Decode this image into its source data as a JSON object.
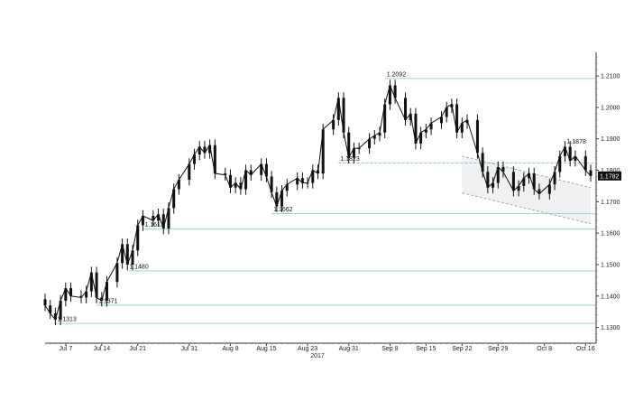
{
  "chart_data": {
    "type": "candlestick",
    "title": "",
    "xlabel": "2017",
    "ylabel": "",
    "ylim": [
      1.125,
      1.2175
    ],
    "grid": false,
    "legend": "none",
    "colors": {
      "candle": "#111111",
      "level_line": "#8fd3c9",
      "channel": "#9a9a9a",
      "channel_fill": "#eef0f2",
      "axis": "#333333",
      "badge_bg": "#111111",
      "badge_text": "#ffffff"
    },
    "x_tick_labels": [
      "Jul 7",
      "Jul 14",
      "Jul 21",
      "Jul 31",
      "Aug 8",
      "Aug 15",
      "Aug 23",
      "Aug 31",
      "Sep 8",
      "Sep 15",
      "Sep 22",
      "Sep 29",
      "Oct 8",
      "Oct 16"
    ],
    "x_tick_dates": [
      "2017-07-07",
      "2017-07-14",
      "2017-07-21",
      "2017-07-31",
      "2017-08-08",
      "2017-08-15",
      "2017-08-23",
      "2017-08-31",
      "2017-09-08",
      "2017-09-15",
      "2017-09-22",
      "2017-09-29",
      "2017-10-08",
      "2017-10-16"
    ],
    "x_range": [
      "2017-07-03",
      "2017-10-17"
    ],
    "y_ticks": [
      "1.1300",
      "1.1400",
      "1.1500",
      "1.1600",
      "1.1700",
      "1.1800",
      "1.1900",
      "1.2000",
      "1.2100"
    ],
    "last_price": "1.1782",
    "levels": [
      {
        "label": "1.2092",
        "value": 1.2092,
        "start": "2017-09-07",
        "style": "solid"
      },
      {
        "label": "1.1878",
        "value": 1.1878,
        "start": "2017-10-12",
        "style": "none"
      },
      {
        "label": "1.1823",
        "value": 1.1823,
        "start": "2017-08-29",
        "style": "dashed"
      },
      {
        "label": "1.1662",
        "value": 1.1662,
        "start": "2017-08-16",
        "style": "solid"
      },
      {
        "label": "1.1613",
        "value": 1.1613,
        "start": "2017-07-22",
        "style": "solid"
      },
      {
        "label": "1.1480",
        "value": 1.148,
        "start": "2017-07-19",
        "style": "solid"
      },
      {
        "label": "1.1371",
        "value": 1.1371,
        "start": "2017-07-13",
        "style": "solid"
      },
      {
        "label": "1.1313",
        "value": 1.1313,
        "start": "2017-07-05",
        "style": "solid"
      }
    ],
    "channel": {
      "upper": [
        [
          "2017-09-22",
          1.1845
        ],
        [
          "2017-10-17",
          1.1745
        ]
      ],
      "lower": [
        [
          "2017-09-22",
          1.1728
        ],
        [
          "2017-10-17",
          1.163
        ]
      ]
    },
    "series": [
      {
        "values": [
          [
            "2017-07-03",
            1.137
          ],
          [
            "2017-07-04",
            1.1345
          ],
          [
            "2017-07-05",
            1.1325
          ],
          [
            "2017-07-06",
            1.1385
          ],
          [
            "2017-07-07",
            1.1425
          ],
          [
            "2017-07-08",
            1.14
          ],
          [
            "2017-07-10",
            1.1395
          ],
          [
            "2017-07-11",
            1.1415
          ],
          [
            "2017-07-12",
            1.1475
          ],
          [
            "2017-07-13",
            1.1395
          ],
          [
            "2017-07-14",
            1.1385
          ],
          [
            "2017-07-15",
            1.1445
          ],
          [
            "2017-07-17",
            1.1505
          ],
          [
            "2017-07-18",
            1.1565
          ],
          [
            "2017-07-19",
            1.15
          ],
          [
            "2017-07-20",
            1.1545
          ],
          [
            "2017-07-21",
            1.1625
          ],
          [
            "2017-07-22",
            1.1655
          ],
          [
            "2017-07-24",
            1.164
          ],
          [
            "2017-07-25",
            1.166
          ],
          [
            "2017-07-26",
            1.1615
          ],
          [
            "2017-07-27",
            1.168
          ],
          [
            "2017-07-28",
            1.174
          ],
          [
            "2017-07-29",
            1.177
          ],
          [
            "2017-07-31",
            1.182
          ],
          [
            "2017-08-01",
            1.185
          ],
          [
            "2017-08-02",
            1.1875
          ],
          [
            "2017-08-03",
            1.1855
          ],
          [
            "2017-08-04",
            1.188
          ],
          [
            "2017-08-05",
            1.179
          ],
          [
            "2017-08-07",
            1.1785
          ],
          [
            "2017-08-08",
            1.1745
          ],
          [
            "2017-08-09",
            1.176
          ],
          [
            "2017-08-10",
            1.174
          ],
          [
            "2017-08-11",
            1.18
          ],
          [
            "2017-08-12",
            1.1785
          ],
          [
            "2017-08-14",
            1.182
          ],
          [
            "2017-08-15",
            1.178
          ],
          [
            "2017-08-16",
            1.173
          ],
          [
            "2017-08-17",
            1.1685
          ],
          [
            "2017-08-18",
            1.1735
          ],
          [
            "2017-08-19",
            1.1755
          ],
          [
            "2017-08-21",
            1.1775
          ],
          [
            "2017-08-22",
            1.176
          ],
          [
            "2017-08-23",
            1.176
          ],
          [
            "2017-08-24",
            1.18
          ],
          [
            "2017-08-25",
            1.179
          ],
          [
            "2017-08-26",
            1.193
          ],
          [
            "2017-08-28",
            1.196
          ],
          [
            "2017-08-29",
            1.203
          ],
          [
            "2017-08-30",
            1.192
          ],
          [
            "2017-08-31",
            1.184
          ],
          [
            "2017-09-01",
            1.187
          ],
          [
            "2017-09-02",
            1.187
          ],
          [
            "2017-09-04",
            1.19
          ],
          [
            "2017-09-05",
            1.191
          ],
          [
            "2017-09-06",
            1.192
          ],
          [
            "2017-09-07",
            1.201
          ],
          [
            "2017-09-08",
            1.207
          ],
          [
            "2017-09-09",
            1.203
          ],
          [
            "2017-09-11",
            1.196
          ],
          [
            "2017-09-12",
            1.198
          ],
          [
            "2017-09-13",
            1.1885
          ],
          [
            "2017-09-14",
            1.192
          ],
          [
            "2017-09-15",
            1.193
          ],
          [
            "2017-09-16",
            1.195
          ],
          [
            "2017-09-18",
            1.197
          ],
          [
            "2017-09-19",
            1.2
          ],
          [
            "2017-09-20",
            1.201
          ],
          [
            "2017-09-21",
            1.192
          ],
          [
            "2017-09-22",
            1.195
          ],
          [
            "2017-09-23",
            1.196
          ],
          [
            "2017-09-25",
            1.1855
          ],
          [
            "2017-09-26",
            1.1795
          ],
          [
            "2017-09-27",
            1.1745
          ],
          [
            "2017-09-28",
            1.176
          ],
          [
            "2017-09-29",
            1.181
          ],
          [
            "2017-09-30",
            1.1795
          ],
          [
            "2017-10-02",
            1.1735
          ],
          [
            "2017-10-03",
            1.175
          ],
          [
            "2017-10-04",
            1.1775
          ],
          [
            "2017-10-05",
            1.179
          ],
          [
            "2017-10-06",
            1.174
          ],
          [
            "2017-10-07",
            1.1725
          ],
          [
            "2017-10-09",
            1.1755
          ],
          [
            "2017-10-10",
            1.1795
          ],
          [
            "2017-10-11",
            1.1845
          ],
          [
            "2017-10-12",
            1.1875
          ],
          [
            "2017-10-13",
            1.183
          ],
          [
            "2017-10-14",
            1.1845
          ],
          [
            "2017-10-16",
            1.18
          ],
          [
            "2017-10-17",
            1.1782
          ]
        ]
      }
    ]
  }
}
